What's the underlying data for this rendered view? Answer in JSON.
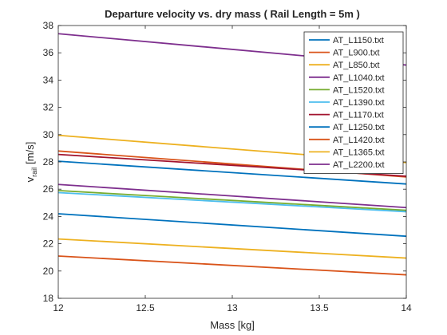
{
  "chart_data": {
    "type": "line",
    "title": "Departure velocity vs. dry mass ( Rail Length = 5m )",
    "xlabel": "Mass [kg]",
    "ylabel_main": "v",
    "ylabel_sub": "rail",
    "ylabel_unit": "[m/s]",
    "xlim": [
      12,
      14
    ],
    "ylim": [
      18,
      38
    ],
    "xticks": [
      12,
      12.5,
      13,
      13.5,
      14
    ],
    "xtick_labels": [
      "12",
      "12.5",
      "13",
      "13.5",
      "14"
    ],
    "yticks": [
      18,
      20,
      22,
      24,
      26,
      28,
      30,
      32,
      34,
      36,
      38
    ],
    "ytick_labels": [
      "18",
      "20",
      "22",
      "24",
      "26",
      "28",
      "30",
      "32",
      "34",
      "36",
      "38"
    ],
    "grid": false,
    "legend_position": "top-right",
    "x": [
      12,
      14
    ],
    "series": [
      {
        "name": "AT_L1150.txt",
        "color": "#0072BD",
        "values": [
          28.05,
          26.38
        ]
      },
      {
        "name": "AT_L900.txt",
        "color": "#D95319",
        "values": [
          28.8,
          26.9
        ]
      },
      {
        "name": "AT_L850.txt",
        "color": "#EDB120",
        "values": [
          29.95,
          27.95
        ]
      },
      {
        "name": "AT_L1040.txt",
        "color": "#7E2F8E",
        "values": [
          26.35,
          24.65
        ]
      },
      {
        "name": "AT_L1520.txt",
        "color": "#77AC30",
        "values": [
          25.9,
          24.45
        ]
      },
      {
        "name": "AT_L1390.txt",
        "color": "#4DBEEE",
        "values": [
          25.75,
          24.35
        ]
      },
      {
        "name": "AT_L1170.txt",
        "color": "#A2142F",
        "values": [
          28.55,
          26.95
        ]
      },
      {
        "name": "AT_L1250.txt",
        "color": "#0072BD",
        "values": [
          24.2,
          22.55
        ]
      },
      {
        "name": "AT_L1420.txt",
        "color": "#D95319",
        "values": [
          21.1,
          19.72
        ]
      },
      {
        "name": "AT_L1365.txt",
        "color": "#EDB120",
        "values": [
          22.35,
          20.95
        ]
      },
      {
        "name": "AT_L2200.txt",
        "color": "#7E2F8E",
        "values": [
          37.4,
          35.1
        ]
      }
    ]
  }
}
